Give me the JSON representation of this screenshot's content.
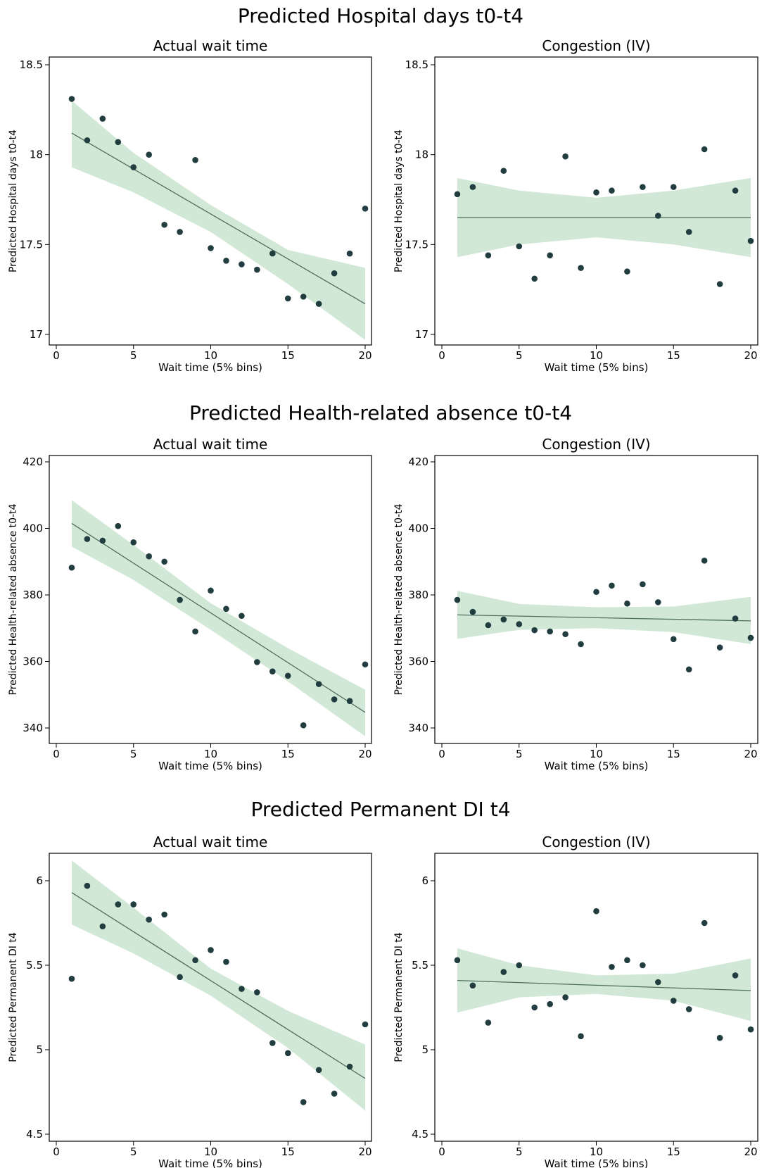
{
  "chart_data": [
    {
      "section_title": "Predicted Hospital days t0-t4",
      "panels": [
        {
          "type": "scatter",
          "title": "Actual wait time",
          "xlabel": "Wait time (5% bins)",
          "ylabel": "Predicted Hospital days t0-t4",
          "xlim": [
            0,
            20
          ],
          "ylim": [
            17,
            18.5
          ],
          "xticks": [
            0,
            5,
            10,
            15,
            20
          ],
          "yticks": [
            17,
            17.5,
            18,
            18.5
          ],
          "ytick_labels": [
            "17",
            "17.5",
            "18",
            "18.5"
          ],
          "x": [
            1,
            2,
            3,
            4,
            5,
            6,
            7,
            8,
            9,
            10,
            11,
            12,
            13,
            14,
            15,
            16,
            17,
            18,
            19,
            20
          ],
          "y": [
            18.31,
            18.08,
            18.2,
            18.07,
            17.93,
            18.0,
            17.61,
            17.57,
            17.97,
            17.48,
            17.41,
            17.39,
            17.36,
            17.45,
            17.2,
            17.21,
            17.17,
            17.34,
            17.45,
            17.7
          ],
          "fit": {
            "x": [
              1,
              20
            ],
            "y": [
              18.12,
              17.17
            ]
          },
          "ci": {
            "x": [
              1,
              5,
              10,
              15,
              20
            ],
            "lower": [
              17.93,
              17.79,
              17.57,
              17.28,
              16.97
            ],
            "upper": [
              18.3,
              18.01,
              17.72,
              17.47,
              17.37
            ]
          },
          "grid": false
        },
        {
          "type": "scatter",
          "title": "Congestion (IV)",
          "xlabel": "Wait time (5% bins)",
          "ylabel": "Predicted Hospital days t0-t4",
          "xlim": [
            0,
            20
          ],
          "ylim": [
            17,
            18.5
          ],
          "xticks": [
            0,
            5,
            10,
            15,
            20
          ],
          "yticks": [
            17,
            17.5,
            18,
            18.5
          ],
          "ytick_labels": [
            "17",
            "17.5",
            "18",
            "18.5"
          ],
          "x": [
            1,
            2,
            3,
            4,
            5,
            6,
            7,
            8,
            9,
            10,
            11,
            12,
            13,
            14,
            15,
            16,
            17,
            18,
            19,
            20
          ],
          "y": [
            17.78,
            17.82,
            17.44,
            17.91,
            17.49,
            17.31,
            17.44,
            17.99,
            17.37,
            17.79,
            17.8,
            17.35,
            17.82,
            17.66,
            17.82,
            17.57,
            18.03,
            17.28,
            17.8,
            17.52
          ],
          "fit": {
            "x": [
              1,
              20
            ],
            "y": [
              17.65,
              17.65
            ]
          },
          "ci": {
            "x": [
              1,
              5,
              10,
              15,
              20
            ],
            "lower": [
              17.43,
              17.5,
              17.54,
              17.5,
              17.43
            ],
            "upper": [
              17.87,
              17.8,
              17.76,
              17.8,
              17.87
            ]
          },
          "grid": false
        }
      ]
    },
    {
      "section_title": "Predicted Health-related absence t0-t4",
      "panels": [
        {
          "type": "scatter",
          "title": "Actual wait time",
          "xlabel": "Wait time (5% bins)",
          "ylabel": "Predicted Health-related absence t0-t4",
          "xlim": [
            0,
            20
          ],
          "ylim": [
            340,
            420
          ],
          "xticks": [
            0,
            5,
            10,
            15,
            20
          ],
          "yticks": [
            340,
            360,
            380,
            400,
            420
          ],
          "ytick_labels": [
            "340",
            "360",
            "380",
            "400",
            "420"
          ],
          "x": [
            1,
            2,
            3,
            4,
            5,
            6,
            7,
            8,
            9,
            10,
            11,
            12,
            13,
            14,
            15,
            16,
            17,
            18,
            19,
            20
          ],
          "y": [
            388.2,
            396.8,
            396.3,
            400.7,
            395.8,
            391.6,
            390.0,
            378.5,
            369.0,
            381.3,
            375.8,
            373.7,
            359.8,
            357.0,
            355.7,
            340.8,
            353.2,
            348.6,
            348.1,
            359.1
          ],
          "fit": {
            "x": [
              1,
              20
            ],
            "y": [
              401.5,
              344.7
            ]
          },
          "ci": {
            "x": [
              1,
              5,
              10,
              15,
              20
            ],
            "lower": [
              394.5,
              384.5,
              369.5,
              354.0,
              337.5
            ],
            "upper": [
              408.5,
              395.0,
              377.5,
              364.0,
              351.5
            ]
          },
          "grid": false
        },
        {
          "type": "scatter",
          "title": "Congestion (IV)",
          "xlabel": "Wait time (5% bins)",
          "ylabel": "Predicted Health-related absence t0-t4",
          "xlim": [
            0,
            20
          ],
          "ylim": [
            340,
            420
          ],
          "xticks": [
            0,
            5,
            10,
            15,
            20
          ],
          "yticks": [
            340,
            360,
            380,
            400,
            420
          ],
          "ytick_labels": [
            "340",
            "360",
            "380",
            "400",
            "420"
          ],
          "x": [
            1,
            2,
            3,
            4,
            5,
            6,
            7,
            8,
            9,
            10,
            11,
            12,
            13,
            14,
            15,
            16,
            17,
            18,
            19,
            20
          ],
          "y": [
            378.5,
            374.9,
            370.9,
            372.6,
            371.2,
            369.4,
            369.0,
            368.2,
            365.2,
            380.9,
            382.8,
            377.4,
            383.2,
            377.8,
            366.7,
            357.6,
            390.3,
            364.2,
            372.9,
            367.1
          ],
          "fit": {
            "x": [
              1,
              20
            ],
            "y": [
              374.0,
              372.2
            ]
          },
          "ci": {
            "x": [
              1,
              5,
              10,
              15,
              20
            ],
            "lower": [
              366.8,
              369.5,
              370.0,
              368.8,
              365.2
            ],
            "upper": [
              381.2,
              377.3,
              376.3,
              376.5,
              379.4
            ]
          },
          "grid": false
        }
      ]
    },
    {
      "section_title": "Predicted Permanent DI t4",
      "panels": [
        {
          "type": "scatter",
          "title": "Actual wait time",
          "xlabel": "Wait time (5% bins)",
          "ylabel": "Predicted Permanent DI t4",
          "xlim": [
            0,
            20
          ],
          "ylim": [
            4.5,
            6
          ],
          "xticks": [
            0,
            5,
            10,
            15,
            20
          ],
          "yticks": [
            4.5,
            5,
            5.5,
            6
          ],
          "ytick_labels": [
            "4.5",
            "5",
            "5.5",
            "6"
          ],
          "x": [
            1,
            2,
            3,
            4,
            5,
            6,
            7,
            8,
            9,
            10,
            11,
            12,
            13,
            14,
            15,
            16,
            17,
            18,
            19,
            20
          ],
          "y": [
            5.42,
            5.97,
            5.73,
            5.86,
            5.86,
            5.77,
            5.8,
            5.43,
            5.53,
            5.59,
            5.52,
            5.36,
            5.34,
            5.04,
            4.98,
            4.69,
            4.88,
            4.74,
            4.9,
            5.15
          ],
          "fit": {
            "x": [
              1,
              20
            ],
            "y": [
              5.93,
              4.83
            ]
          },
          "ci": {
            "x": [
              1,
              5,
              10,
              15,
              20
            ],
            "lower": [
              5.74,
              5.57,
              5.32,
              5.01,
              4.64
            ],
            "upper": [
              6.12,
              5.84,
              5.48,
              5.23,
              5.03
            ]
          },
          "grid": false
        },
        {
          "type": "scatter",
          "title": "Congestion (IV)",
          "xlabel": "Wait time (5% bins)",
          "ylabel": "Predicted Permanent DI t4",
          "xlim": [
            0,
            20
          ],
          "ylim": [
            4.5,
            6
          ],
          "xticks": [
            0,
            5,
            10,
            15,
            20
          ],
          "yticks": [
            4.5,
            5,
            5.5,
            6
          ],
          "ytick_labels": [
            "4.5",
            "5",
            "5.5",
            "6"
          ],
          "x": [
            1,
            2,
            3,
            4,
            5,
            6,
            7,
            8,
            9,
            10,
            11,
            12,
            13,
            14,
            15,
            16,
            17,
            18,
            19,
            20
          ],
          "y": [
            5.53,
            5.38,
            5.16,
            5.46,
            5.5,
            5.25,
            5.27,
            5.31,
            5.08,
            5.82,
            5.49,
            5.53,
            5.5,
            5.4,
            5.29,
            5.24,
            5.75,
            5.07,
            5.44,
            5.12
          ],
          "fit": {
            "x": [
              1,
              20
            ],
            "y": [
              5.41,
              5.35
            ]
          },
          "ci": {
            "x": [
              1,
              5,
              10,
              15,
              20
            ],
            "lower": [
              5.22,
              5.31,
              5.33,
              5.29,
              5.17
            ],
            "upper": [
              5.6,
              5.5,
              5.44,
              5.45,
              5.54
            ]
          },
          "grid": false
        }
      ]
    }
  ],
  "colors": {
    "marker": "#213d3f",
    "fit_line": "#4e6e5e",
    "ci_band": "#d1e8d6",
    "axis": "#000000",
    "background": "#ffffff"
  }
}
